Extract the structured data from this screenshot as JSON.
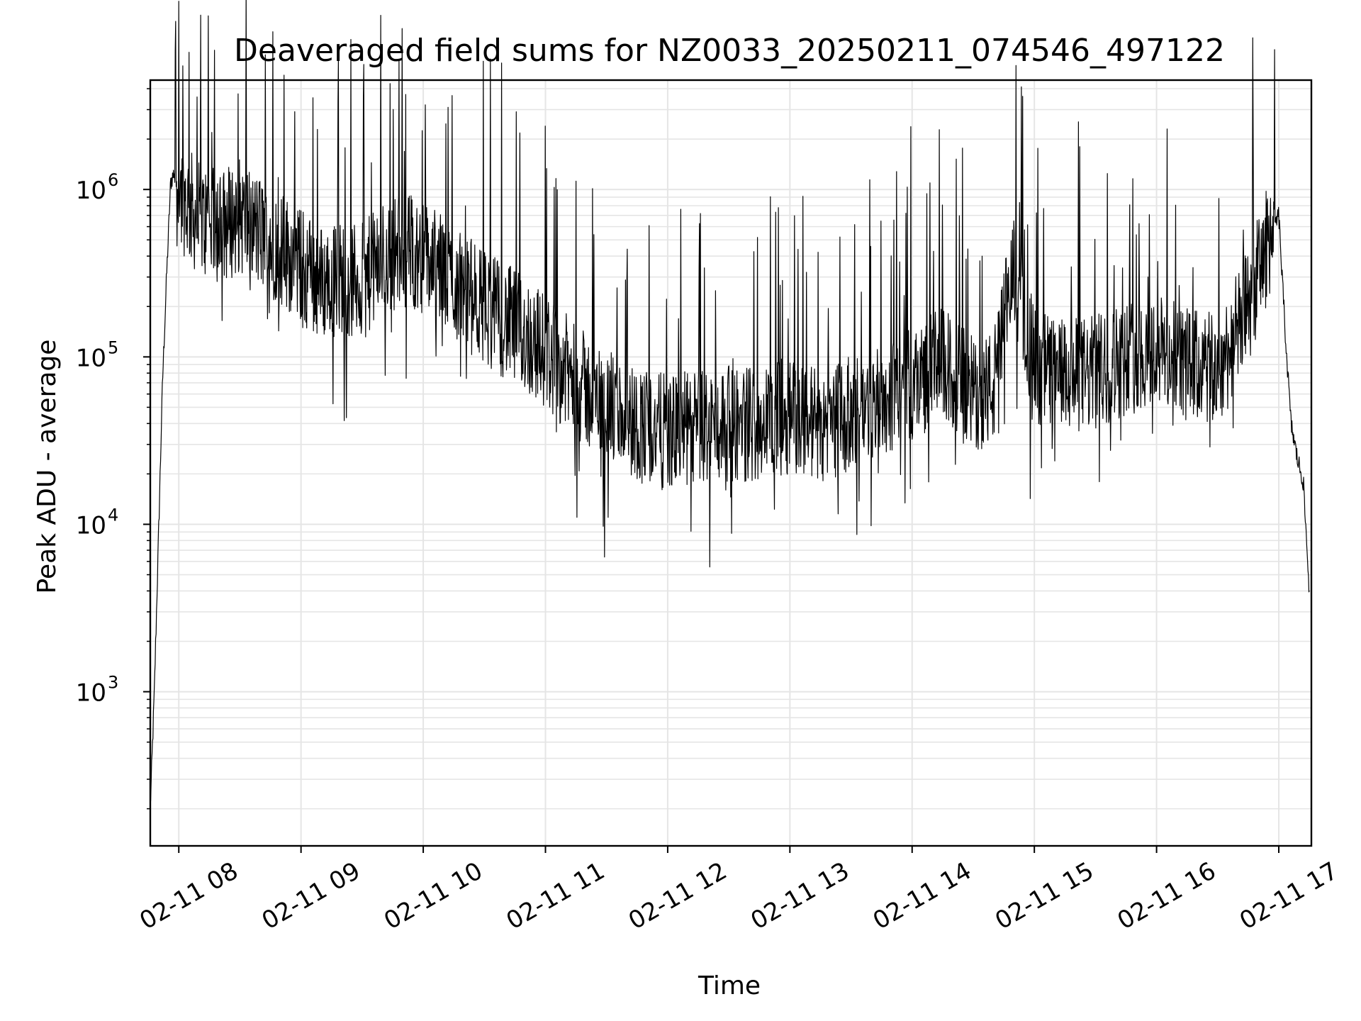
{
  "chart_data": {
    "type": "line",
    "title": "Deaveraged field sums for NZ0033_20250211_074546_497122",
    "xlabel": "Time",
    "ylabel": "Peak ADU - average",
    "yscale": "log",
    "ylim": [
      120,
      4500000
    ],
    "xlim": [
      "2025-02-11 07:46",
      "2025-02-11 17:16"
    ],
    "grid": true,
    "line_color": "#000000",
    "grid_color": "#e5e5e5",
    "x_ticks": [
      "02-11 08",
      "02-11 09",
      "02-11 10",
      "02-11 11",
      "02-11 12",
      "02-11 13",
      "02-11 14",
      "02-11 15",
      "02-11 16",
      "02-11 17"
    ],
    "y_ticks": [
      {
        "base": "10",
        "exp": "3",
        "value": 1000
      },
      {
        "base": "10",
        "exp": "4",
        "value": 10000
      },
      {
        "base": "10",
        "exp": "5",
        "value": 100000
      },
      {
        "base": "10",
        "exp": "6",
        "value": 1000000
      }
    ],
    "series": [
      {
        "x": [
          "2025-02-11 07:46",
          "2025-02-11 07:48",
          "2025-02-11 07:50",
          "2025-02-11 07:52",
          "2025-02-11 07:54",
          "2025-02-11 07:56",
          "2025-02-11 07:58",
          "2025-02-11 08:00",
          "2025-02-11 08:05",
          "2025-02-11 08:10",
          "2025-02-11 08:20",
          "2025-02-11 08:30",
          "2025-02-11 08:40",
          "2025-02-11 08:50",
          "2025-02-11 09:00",
          "2025-02-11 09:10",
          "2025-02-11 09:20",
          "2025-02-11 09:30",
          "2025-02-11 09:40",
          "2025-02-11 09:50",
          "2025-02-11 10:00",
          "2025-02-11 10:15",
          "2025-02-11 10:30",
          "2025-02-11 10:45",
          "2025-02-11 11:00",
          "2025-02-11 11:15",
          "2025-02-11 11:30",
          "2025-02-11 11:45",
          "2025-02-11 12:00",
          "2025-02-11 12:15",
          "2025-02-11 12:30",
          "2025-02-11 12:45",
          "2025-02-11 13:00",
          "2025-02-11 13:15",
          "2025-02-11 13:30",
          "2025-02-11 13:45",
          "2025-02-11 14:00",
          "2025-02-11 14:15",
          "2025-02-11 14:30",
          "2025-02-11 14:40",
          "2025-02-11 14:50",
          "2025-02-11 15:00",
          "2025-02-11 15:15",
          "2025-02-11 15:30",
          "2025-02-11 15:45",
          "2025-02-11 16:00",
          "2025-02-11 16:15",
          "2025-02-11 16:30",
          "2025-02-11 16:45",
          "2025-02-11 16:55",
          "2025-02-11 17:00",
          "2025-02-11 17:03",
          "2025-02-11 17:06",
          "2025-02-11 17:09",
          "2025-02-11 17:12",
          "2025-02-11 17:15"
        ],
        "y": [
          200,
          1000,
          8000,
          70000,
          300000,
          1100000,
          1300000,
          1000000,
          800000,
          650000,
          600000,
          700000,
          550000,
          450000,
          350000,
          280000,
          300000,
          280000,
          380000,
          450000,
          400000,
          280000,
          200000,
          150000,
          110000,
          70000,
          50000,
          40000,
          35000,
          38000,
          40000,
          40000,
          45000,
          40000,
          45000,
          55000,
          70000,
          90000,
          60000,
          65000,
          350000,
          90000,
          75000,
          80000,
          100000,
          110000,
          90000,
          80000,
          200000,
          500000,
          700000,
          150000,
          40000,
          25000,
          18000,
          4000
        ]
      }
    ]
  }
}
